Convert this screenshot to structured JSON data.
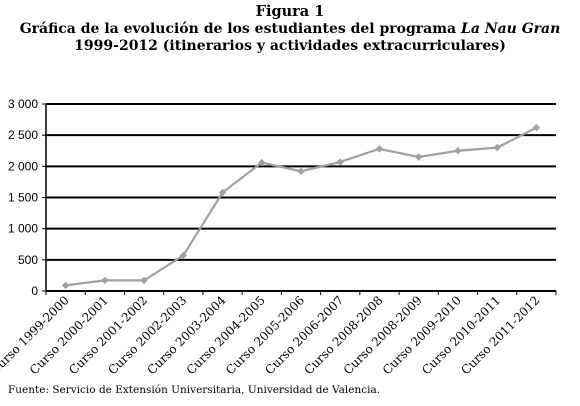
{
  "figure_label": "Figura 1",
  "title": {
    "line1_prefix": "Gráfica de la evolución de los estudiantes del programa ",
    "line1_italic": "La Nau Gran",
    "line2": "1999-2012 (itinerarios y actividades extracurriculares)"
  },
  "source": "Fuente: Servicio de Extensión Universitaria, Universidad de Valencia.",
  "chart_data": {
    "type": "line",
    "categories": [
      "Curso 1999-2000",
      "Curso 2000-2001",
      "Curso 2001-2002",
      "Curso 2002-2003",
      "Curso 2003-2004",
      "Curso 2004-2005",
      "Curso 2005-2006",
      "Curso 2006-2007",
      "Curso 2008-2008",
      "Curso 2008-2009",
      "Curso 2009-2010",
      "Curso 2010-2011",
      "Curso 2011-2012"
    ],
    "values": [
      90,
      170,
      170,
      570,
      1580,
      2060,
      1920,
      2070,
      2280,
      2150,
      2250,
      2300,
      2620
    ],
    "ylim": [
      0,
      3000
    ],
    "yticks": [
      0,
      500,
      1000,
      1500,
      2000,
      2500,
      3000
    ],
    "ytick_labels": [
      "0",
      "500",
      "1 000",
      "1 500",
      "2 000",
      "2 500",
      "3 000"
    ],
    "grid": "horizontal",
    "line_color": "#a0a0a0",
    "marker_color": "#a0a0a0"
  }
}
